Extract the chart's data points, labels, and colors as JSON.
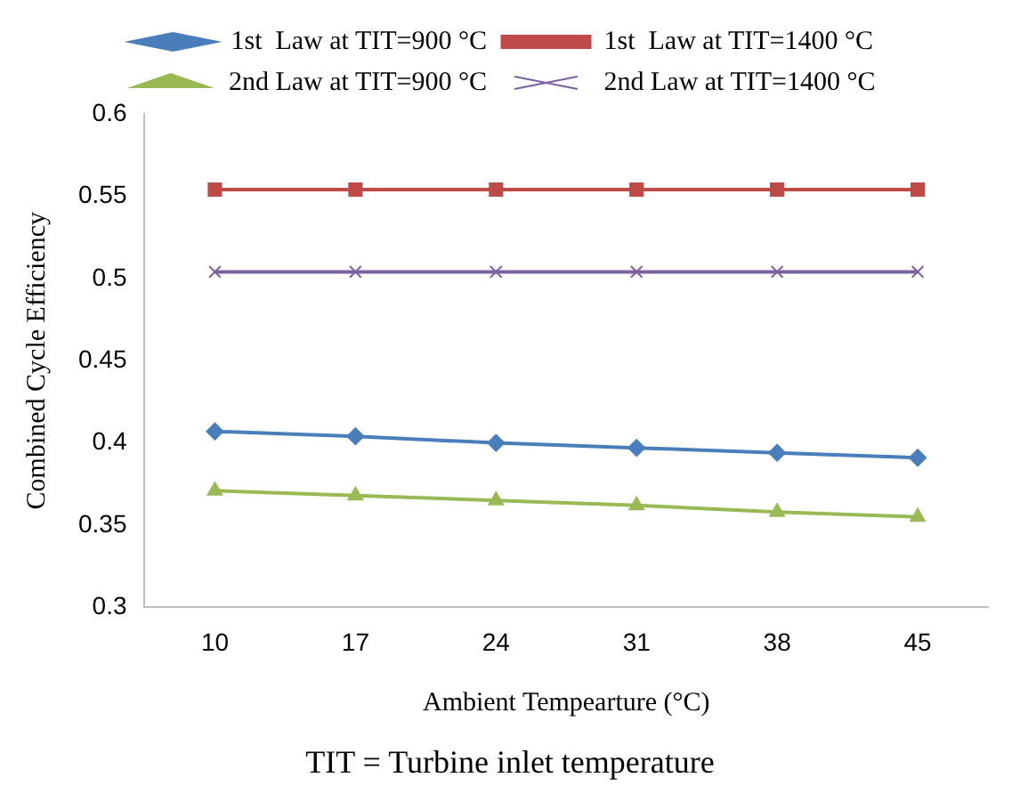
{
  "chart_data": {
    "type": "line",
    "xlabel": "Ambient Tempearture (°C)",
    "ylabel": "Combined Cycle Efficiency",
    "categories": [
      "10",
      "17",
      "24",
      "31",
      "38",
      "45"
    ],
    "series": [
      {
        "name": "1st  Law at TIT=900 °C",
        "color": "#4a7ebb",
        "marker": "diamond",
        "values": [
          0.407,
          0.404,
          0.4,
          0.397,
          0.394,
          0.391
        ]
      },
      {
        "name": "1st  Law at TIT=1400 °C",
        "color": "#be4b48",
        "marker": "square",
        "values": [
          0.554,
          0.554,
          0.554,
          0.554,
          0.554,
          0.554
        ]
      },
      {
        "name": "2nd Law at TIT=900 °C",
        "color": "#98b954",
        "marker": "triangle",
        "values": [
          0.371,
          0.368,
          0.365,
          0.362,
          0.358,
          0.355
        ]
      },
      {
        "name": "2nd Law at TIT=1400 °C",
        "color": "#7d60a0",
        "marker": "cross",
        "values": [
          0.504,
          0.504,
          0.504,
          0.504,
          0.504,
          0.504
        ]
      }
    ],
    "ylim": [
      0.3,
      0.6
    ],
    "yticks": [
      0.3,
      0.35,
      0.4,
      0.45,
      0.5,
      0.55,
      0.6
    ],
    "grid": false,
    "legend": "top",
    "annotations": [
      "TIT = Turbine inlet temperature"
    ]
  }
}
